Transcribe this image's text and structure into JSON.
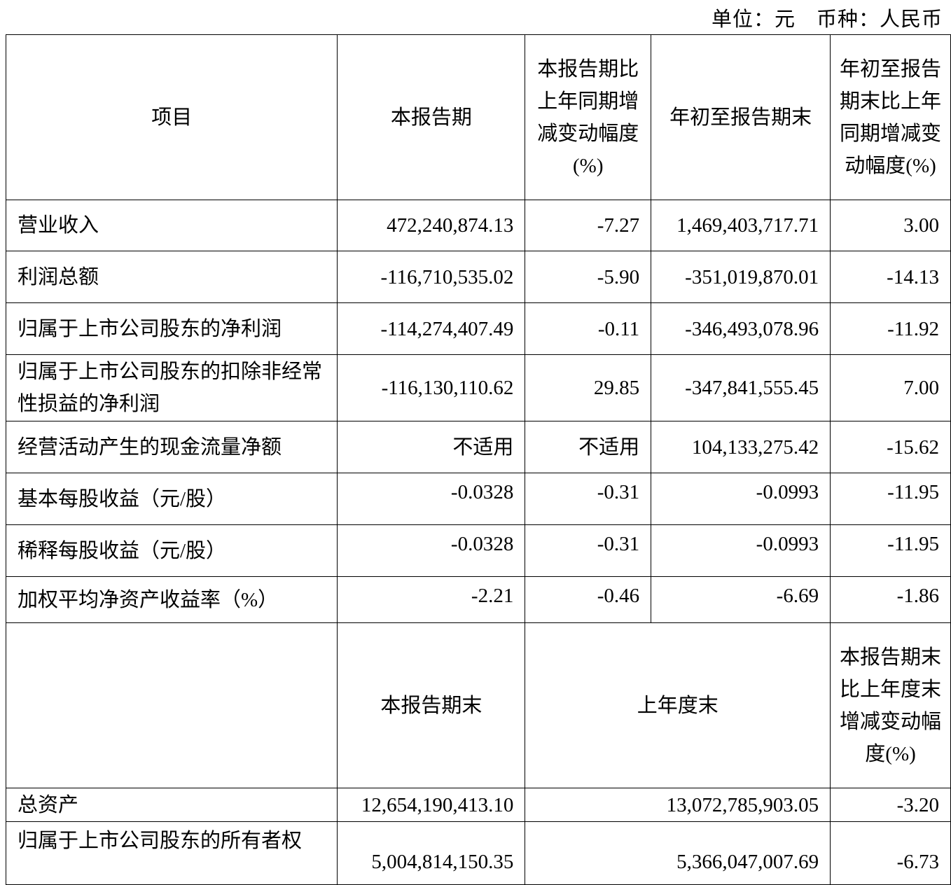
{
  "unit_caption": "单位：元　币种：人民币",
  "header": {
    "item": "项目",
    "current_period": "本报告期",
    "current_change": "本报告期比上年同期增减变动幅度(%)",
    "ytd": "年初至报告期末",
    "ytd_change": "年初至报告期末比上年同期增减变动幅度(%)"
  },
  "rows": [
    {
      "label": "营业收入",
      "current": "472,240,874.13",
      "current_change": "-7.27",
      "ytd": "1,469,403,717.71",
      "ytd_change": "3.00"
    },
    {
      "label": "利润总额",
      "current": "-116,710,535.02",
      "current_change": "-5.90",
      "ytd": "-351,019,870.01",
      "ytd_change": "-14.13"
    },
    {
      "label": "归属于上市公司股东的净利润",
      "current": "-114,274,407.49",
      "current_change": "-0.11",
      "ytd": "-346,493,078.96",
      "ytd_change": "-11.92"
    },
    {
      "label": "归属于上市公司股东的扣除非经常性损益的净利润",
      "current": "-116,130,110.62",
      "current_change": "29.85",
      "ytd": "-347,841,555.45",
      "ytd_change": "7.00"
    },
    {
      "label": "经营活动产生的现金流量净额",
      "current": "不适用",
      "current_change": "不适用",
      "ytd": "104,133,275.42",
      "ytd_change": "-15.62"
    },
    {
      "label": "基本每股收益（元/股）",
      "current": "-0.0328",
      "current_change": "-0.31",
      "ytd": "-0.0993",
      "ytd_change": "-11.95"
    },
    {
      "label": "稀释每股收益（元/股）",
      "current": "-0.0328",
      "current_change": "-0.31",
      "ytd": "-0.0993",
      "ytd_change": "-11.95"
    },
    {
      "label": "加权平均净资产收益率（%）",
      "current": "-2.21",
      "current_change": "-0.46",
      "ytd": "-6.69",
      "ytd_change": "-1.86"
    }
  ],
  "balance_header": {
    "period_end": "本报告期末",
    "prior_year_end": "上年度末",
    "change": "本报告期末比上年度末增减变动幅度(%)"
  },
  "balance_rows": [
    {
      "label": "总资产",
      "period_end": "12,654,190,413.10",
      "prior_year_end": "13,072,785,903.05",
      "change": "-3.20"
    },
    {
      "label": "归属于上市公司股东的所有者权",
      "period_end": "5,004,814,150.35",
      "prior_year_end": "5,366,047,007.69",
      "change": "-6.73"
    }
  ]
}
